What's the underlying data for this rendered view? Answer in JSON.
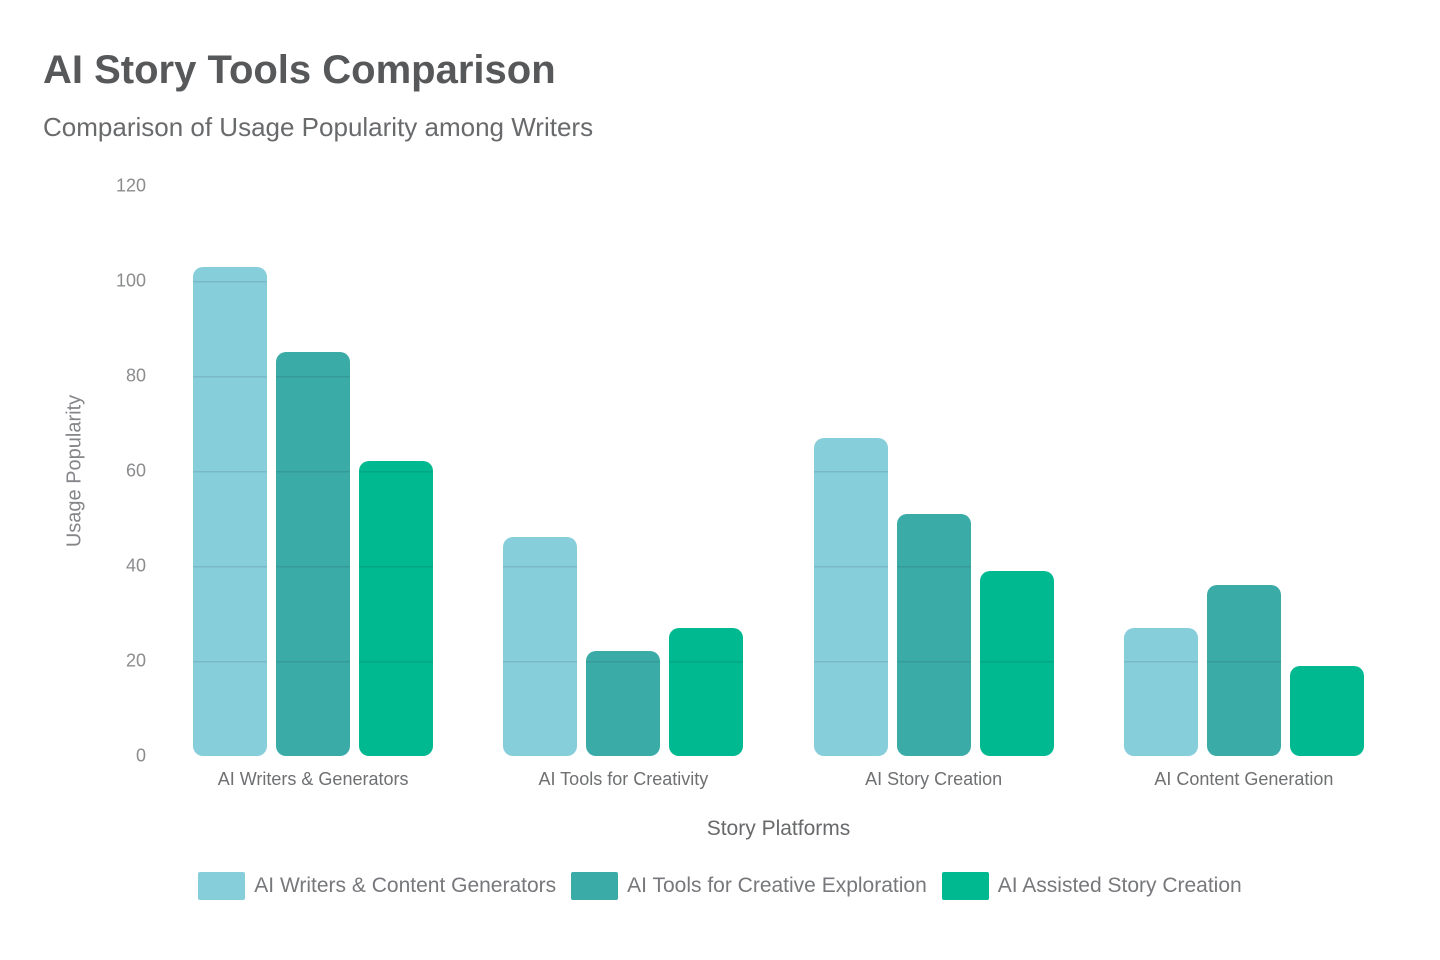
{
  "title": "AI Story Tools Comparison",
  "subtitle": "Comparison of Usage Popularity among Writers",
  "chart_data": {
    "type": "bar",
    "title": "AI Story Tools Comparison",
    "subtitle": "Comparison of Usage Popularity among Writers",
    "categories": [
      "AI Writers & Generators",
      "AI Tools for Creativity",
      "AI Story Creation",
      "AI Content Generation"
    ],
    "series": [
      {
        "name": "AI Writers & Content Generators",
        "color": "#87CEDB",
        "values": [
          103,
          46,
          67,
          27
        ]
      },
      {
        "name": "AI Tools for Creative Exploration",
        "color": "#3BABA7",
        "values": [
          85,
          22,
          51,
          36
        ]
      },
      {
        "name": "AI Assisted Story Creation",
        "color": "#00B991",
        "values": [
          62,
          27,
          39,
          19
        ]
      }
    ],
    "xlabel": "Story Platforms",
    "ylabel": "Usage Popularity",
    "ylim": [
      0,
      120
    ],
    "yticks": [
      0,
      20,
      40,
      60,
      80,
      100,
      120
    ],
    "grid": "subtle, visible only inside bars",
    "legend_position": "bottom",
    "bar_corner_radius": 10
  }
}
